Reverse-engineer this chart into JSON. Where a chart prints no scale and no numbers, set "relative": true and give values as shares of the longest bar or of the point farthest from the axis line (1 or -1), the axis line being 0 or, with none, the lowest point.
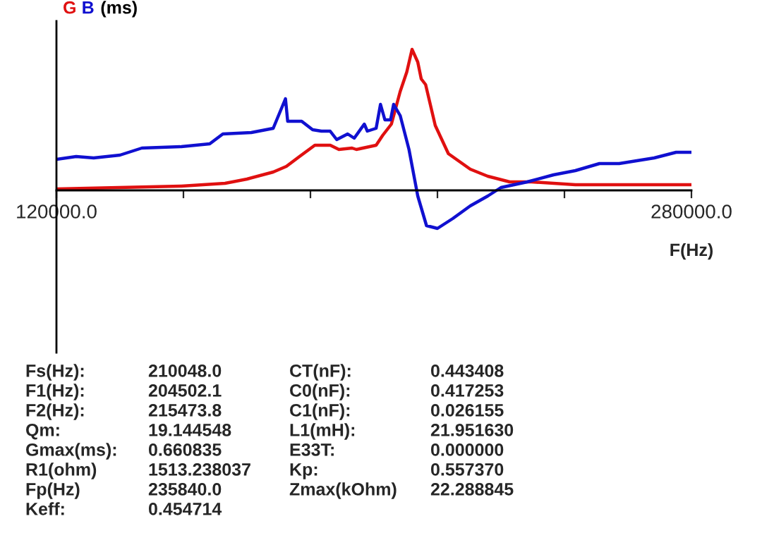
{
  "chart_data": {
    "type": "line",
    "relative": true,
    "xlabel": "F(Hz)",
    "ylabel": "(ms)",
    "legend": "top left",
    "grid": false,
    "xlim": [
      120000,
      280000
    ],
    "xticks": [
      {
        "value": 120000,
        "label": "120000.0"
      },
      {
        "value": 152000,
        "label": null
      },
      {
        "value": 184000,
        "label": null
      },
      {
        "value": 216000,
        "label": null
      },
      {
        "value": 248000,
        "label": null
      },
      {
        "value": 280000,
        "label": "280000.0"
      }
    ],
    "series": [
      {
        "name": "G",
        "color": "#e01010",
        "x": [
          120000,
          151448,
          162483,
          168000,
          174620,
          177930,
          181240,
          185100,
          189000,
          191170,
          194480,
          195580,
          200550,
          202200,
          204400,
          206600,
          208280,
          209600,
          211040,
          211920,
          213020,
          215450,
          218760,
          224280,
          228690,
          234200,
          239720,
          250750,
          261790,
          280000
        ],
        "values": [
          0.01,
          0.03,
          0.05,
          0.08,
          0.13,
          0.17,
          0.24,
          0.32,
          0.32,
          0.29,
          0.3,
          0.29,
          0.32,
          0.39,
          0.47,
          0.7,
          0.84,
          1.0,
          0.91,
          0.79,
          0.75,
          0.46,
          0.26,
          0.15,
          0.1,
          0.06,
          0.06,
          0.04,
          0.04,
          0.04
        ]
      },
      {
        "name": "B",
        "color": "#1010d0",
        "x": [
          120000,
          124970,
          129380,
          136000,
          141520,
          151450,
          158620,
          161930,
          169100,
          174620,
          177710,
          178260,
          181790,
          184550,
          186760,
          188970,
          190620,
          193380,
          195030,
          197570,
          198340,
          200550,
          201650,
          202760,
          204190,
          204960,
          206620,
          208830,
          211040,
          213240,
          216000,
          219860,
          224280,
          228690,
          232000,
          238620,
          245240,
          250750,
          256820,
          261790,
          270620,
          276140,
          280000
        ],
        "values": [
          0.22,
          0.24,
          0.23,
          0.25,
          0.3,
          0.31,
          0.33,
          0.4,
          0.41,
          0.44,
          0.65,
          0.49,
          0.49,
          0.43,
          0.42,
          0.42,
          0.36,
          0.4,
          0.37,
          0.47,
          0.42,
          0.44,
          0.61,
          0.5,
          0.5,
          0.61,
          0.53,
          0.29,
          -0.04,
          -0.25,
          -0.27,
          -0.2,
          -0.11,
          -0.04,
          0.02,
          0.06,
          0.11,
          0.14,
          0.19,
          0.19,
          0.23,
          0.27,
          0.27
        ]
      }
    ],
    "annotations": [
      "Fs(Hz):",
      "210048.0",
      "CT(nF):",
      "0.443408",
      "F1(Hz):",
      "204502.1",
      "C0(nF):",
      "0.417253",
      "F2(Hz):",
      "215473.8",
      "C1(nF):",
      "0.026155",
      "Qm:",
      "19.144548",
      "L1(mH):",
      "21.951630",
      "Gmax(ms):",
      "0.660835",
      "E33T:",
      "0.000000",
      "R1(ohm)",
      "1513.238037",
      "Kp:",
      "0.557370",
      "Fp(Hz)",
      "235840.0",
      "Zmax(kOhm)",
      "22.288845",
      "Keff:",
      "0.454714"
    ]
  }
}
